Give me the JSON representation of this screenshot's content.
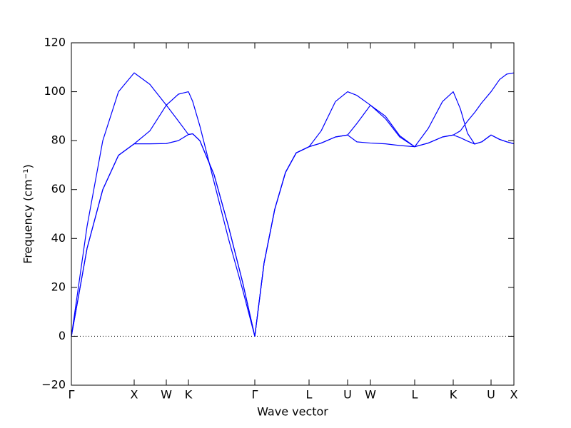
{
  "chart_data": {
    "type": "line",
    "xlabel": "Wave vector",
    "ylabel": "Frequency (cm⁻¹)",
    "x": [
      0,
      0.22,
      0.44,
      0.66,
      0.88,
      1.1,
      1.33,
      1.5,
      1.64,
      1.7,
      1.8,
      2.0,
      2.2,
      2.4,
      2.57,
      2.7,
      2.85,
      3.0,
      3.15,
      3.33,
      3.5,
      3.7,
      3.87,
      4.0,
      4.19,
      4.4,
      4.6,
      4.81,
      5.0,
      5.2,
      5.35,
      5.45,
      5.55,
      5.65,
      5.75,
      5.88,
      6.0,
      6.1,
      6.2
    ],
    "series": [
      {
        "color": "#0000ff",
        "values": [
          0,
          45,
          80,
          100,
          107.7,
          103,
          94.5,
          88,
          82.5,
          82.8,
          80,
          66,
          45,
          22,
          0,
          30,
          52,
          67,
          75,
          77.5,
          84,
          96,
          100,
          98.5,
          94.5,
          90,
          82,
          77.5,
          85,
          96,
          100,
          93,
          83,
          78.6,
          79.5,
          82.3,
          80.5,
          79.5,
          78.7
        ]
      },
      {
        "color": "#0000ff",
        "values": [
          0,
          36,
          60,
          74,
          78.7,
          84,
          94.5,
          99,
          100,
          96,
          86,
          63,
          40,
          19,
          0,
          30,
          52,
          67,
          75,
          77.5,
          79,
          81.5,
          82.3,
          87,
          94.5,
          89,
          81.5,
          77.5,
          79,
          81.5,
          82.3,
          84,
          88,
          91.5,
          95.5,
          100,
          105,
          107.2,
          107.7
        ]
      },
      {
        "color": "#0000ff",
        "values": [
          0,
          36,
          60,
          74,
          78.7,
          78.7,
          78.8,
          80,
          82.5,
          82.8,
          80,
          66,
          45,
          22,
          0,
          30,
          52,
          67,
          75,
          77.5,
          79,
          81.5,
          82.3,
          79.5,
          79,
          78.7,
          78,
          77.5,
          79,
          81.5,
          82.3,
          81.2,
          79.8,
          78.6,
          79.5,
          82.3,
          80.5,
          79.5,
          78.7
        ]
      }
    ],
    "xlim": [
      0,
      6.2
    ],
    "xticks": [
      {
        "value": 0,
        "label": "Γ"
      },
      {
        "value": 0.88,
        "label": "X"
      },
      {
        "value": 1.33,
        "label": "W"
      },
      {
        "value": 1.64,
        "label": "K"
      },
      {
        "value": 2.57,
        "label": "Γ"
      },
      {
        "value": 3.33,
        "label": "L"
      },
      {
        "value": 3.87,
        "label": "U"
      },
      {
        "value": 4.19,
        "label": "W"
      },
      {
        "value": 4.81,
        "label": "L"
      },
      {
        "value": 5.35,
        "label": "K"
      },
      {
        "value": 5.88,
        "label": "U"
      },
      {
        "value": 6.2,
        "label": "X"
      }
    ],
    "ylim": [
      -20,
      120
    ],
    "yticks": [
      {
        "value": -20,
        "label": "−20"
      },
      0,
      20,
      40,
      60,
      80,
      100,
      120
    ],
    "zero_line": true,
    "grid": false
  }
}
